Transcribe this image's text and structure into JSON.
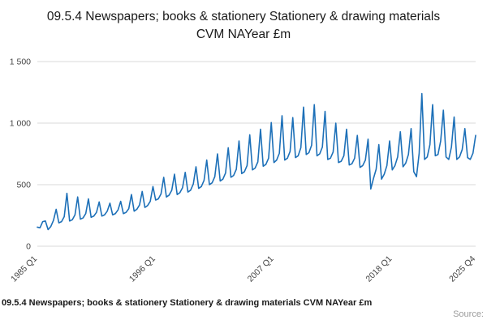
{
  "title": "09.5.4 Newspapers; books & stationery Stationery & drawing materials CVM NAYear £m",
  "footer": {
    "caption": "09.5.4 Newspapers; books & stationery Stationery & drawing materials CVM NAYear £m",
    "source_label": "Source:"
  },
  "chart_data": {
    "type": "line",
    "title": "09.5.4 Newspapers; books & stationery Stationery & drawing materials CVM NAYear £m",
    "xlabel": "",
    "ylabel": "",
    "ylim": [
      0,
      1500
    ],
    "y_ticks": [
      0,
      500,
      1000,
      1500
    ],
    "y_tick_labels": [
      "0",
      "500",
      "1 000",
      "1 500"
    ],
    "x_tick_labels": [
      "1985 Q1",
      "1996 Q1",
      "2007 Q1",
      "2018 Q1",
      "2025 Q4"
    ],
    "x_tick_indices": [
      0,
      44,
      88,
      132,
      163
    ],
    "grid": true,
    "legend": "none",
    "line_color": "#1d70b8",
    "series": [
      {
        "name": "Stationery & drawing materials CVM NAYear £m",
        "x_start": "1985 Q1",
        "x_end": "2025 Q4",
        "frequency": "quarterly",
        "values": [
          155,
          150,
          200,
          205,
          135,
          160,
          210,
          300,
          190,
          200,
          240,
          430,
          205,
          215,
          255,
          400,
          220,
          230,
          265,
          385,
          235,
          245,
          275,
          360,
          245,
          255,
          285,
          350,
          255,
          265,
          295,
          365,
          265,
          275,
          305,
          420,
          285,
          300,
          335,
          445,
          315,
          330,
          365,
          485,
          375,
          385,
          425,
          560,
          400,
          415,
          455,
          585,
          420,
          435,
          475,
          600,
          440,
          455,
          505,
          645,
          470,
          485,
          535,
          700,
          500,
          515,
          565,
          750,
          530,
          545,
          595,
          800,
          560,
          575,
          625,
          855,
          590,
          605,
          655,
          905,
          620,
          635,
          685,
          950,
          650,
          665,
          715,
          1005,
          680,
          700,
          755,
          1060,
          700,
          715,
          770,
          1045,
          720,
          735,
          800,
          1130,
          745,
          760,
          820,
          1150,
          735,
          750,
          805,
          1095,
          705,
          715,
          765,
          1000,
          680,
          690,
          735,
          950,
          660,
          670,
          715,
          900,
          640,
          655,
          700,
          870,
          465,
          550,
          625,
          825,
          545,
          585,
          655,
          855,
          620,
          655,
          725,
          930,
          645,
          675,
          745,
          955,
          605,
          565,
          755,
          1240,
          705,
          725,
          825,
          1150,
          735,
          745,
          855,
          1105,
          725,
          705,
          805,
          1050,
          705,
          725,
          785,
          955,
          720,
          705,
          755,
          900
        ]
      }
    ]
  }
}
